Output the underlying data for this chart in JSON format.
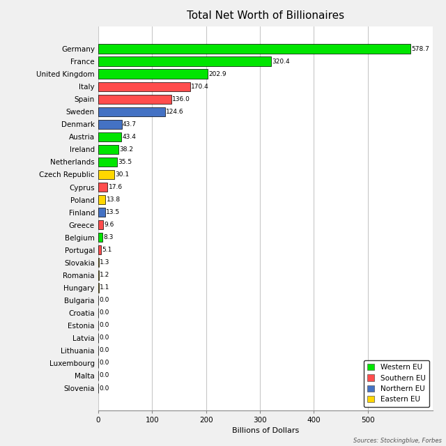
{
  "title": "Total Net Worth of Billionaires",
  "xlabel": "Billions of Dollars",
  "source": "Sources: Stockingblue, Forbes",
  "countries": [
    "Germany",
    "France",
    "United Kingdom",
    "Italy",
    "Spain",
    "Sweden",
    "Denmark",
    "Austria",
    "Ireland",
    "Netherlands",
    "Czech Republic",
    "Cyprus",
    "Poland",
    "Finland",
    "Greece",
    "Belgium",
    "Portugal",
    "Slovakia",
    "Romania",
    "Hungary",
    "Bulgaria",
    "Croatia",
    "Estonia",
    "Latvia",
    "Lithuania",
    "Luxembourg",
    "Malta",
    "Slovenia"
  ],
  "values": [
    578.7,
    320.4,
    202.9,
    170.4,
    136.0,
    124.6,
    43.7,
    43.4,
    38.2,
    35.5,
    30.1,
    17.6,
    13.8,
    13.5,
    9.6,
    8.3,
    5.1,
    1.3,
    1.2,
    1.1,
    0.0,
    0.0,
    0.0,
    0.0,
    0.0,
    0.0,
    0.0,
    0.0
  ],
  "colors": [
    "#00e500",
    "#00e500",
    "#00e500",
    "#ff4d4d",
    "#ff4d4d",
    "#4472c4",
    "#4472c4",
    "#00e500",
    "#00e500",
    "#00e500",
    "#ffd700",
    "#ff4d4d",
    "#ffd700",
    "#4472c4",
    "#ff4d4d",
    "#00e500",
    "#ff4d4d",
    "#ffd700",
    "#ffd700",
    "#ffd700",
    "#ffd700",
    "#ffd700",
    "#ffd700",
    "#ffd700",
    "#ffd700",
    "#00e500",
    "#ff4d4d",
    "#ffd700"
  ],
  "legend": {
    "Western EU": "#00e500",
    "Southern EU": "#ff4d4d",
    "Northern EU": "#4472c4",
    "Eastern EU": "#ffd700"
  },
  "xlim": [
    0,
    620
  ],
  "xticks": [
    0,
    100,
    200,
    300,
    400,
    500
  ],
  "plot_bg_color": "#ffffff",
  "fig_bg_color": "#f0f0f0",
  "bar_edge_color": "#000000",
  "grid_color": "#c8c8c8",
  "title_fontsize": 11,
  "label_fontsize": 8,
  "tick_fontsize": 7.5,
  "value_fontsize": 6.5
}
